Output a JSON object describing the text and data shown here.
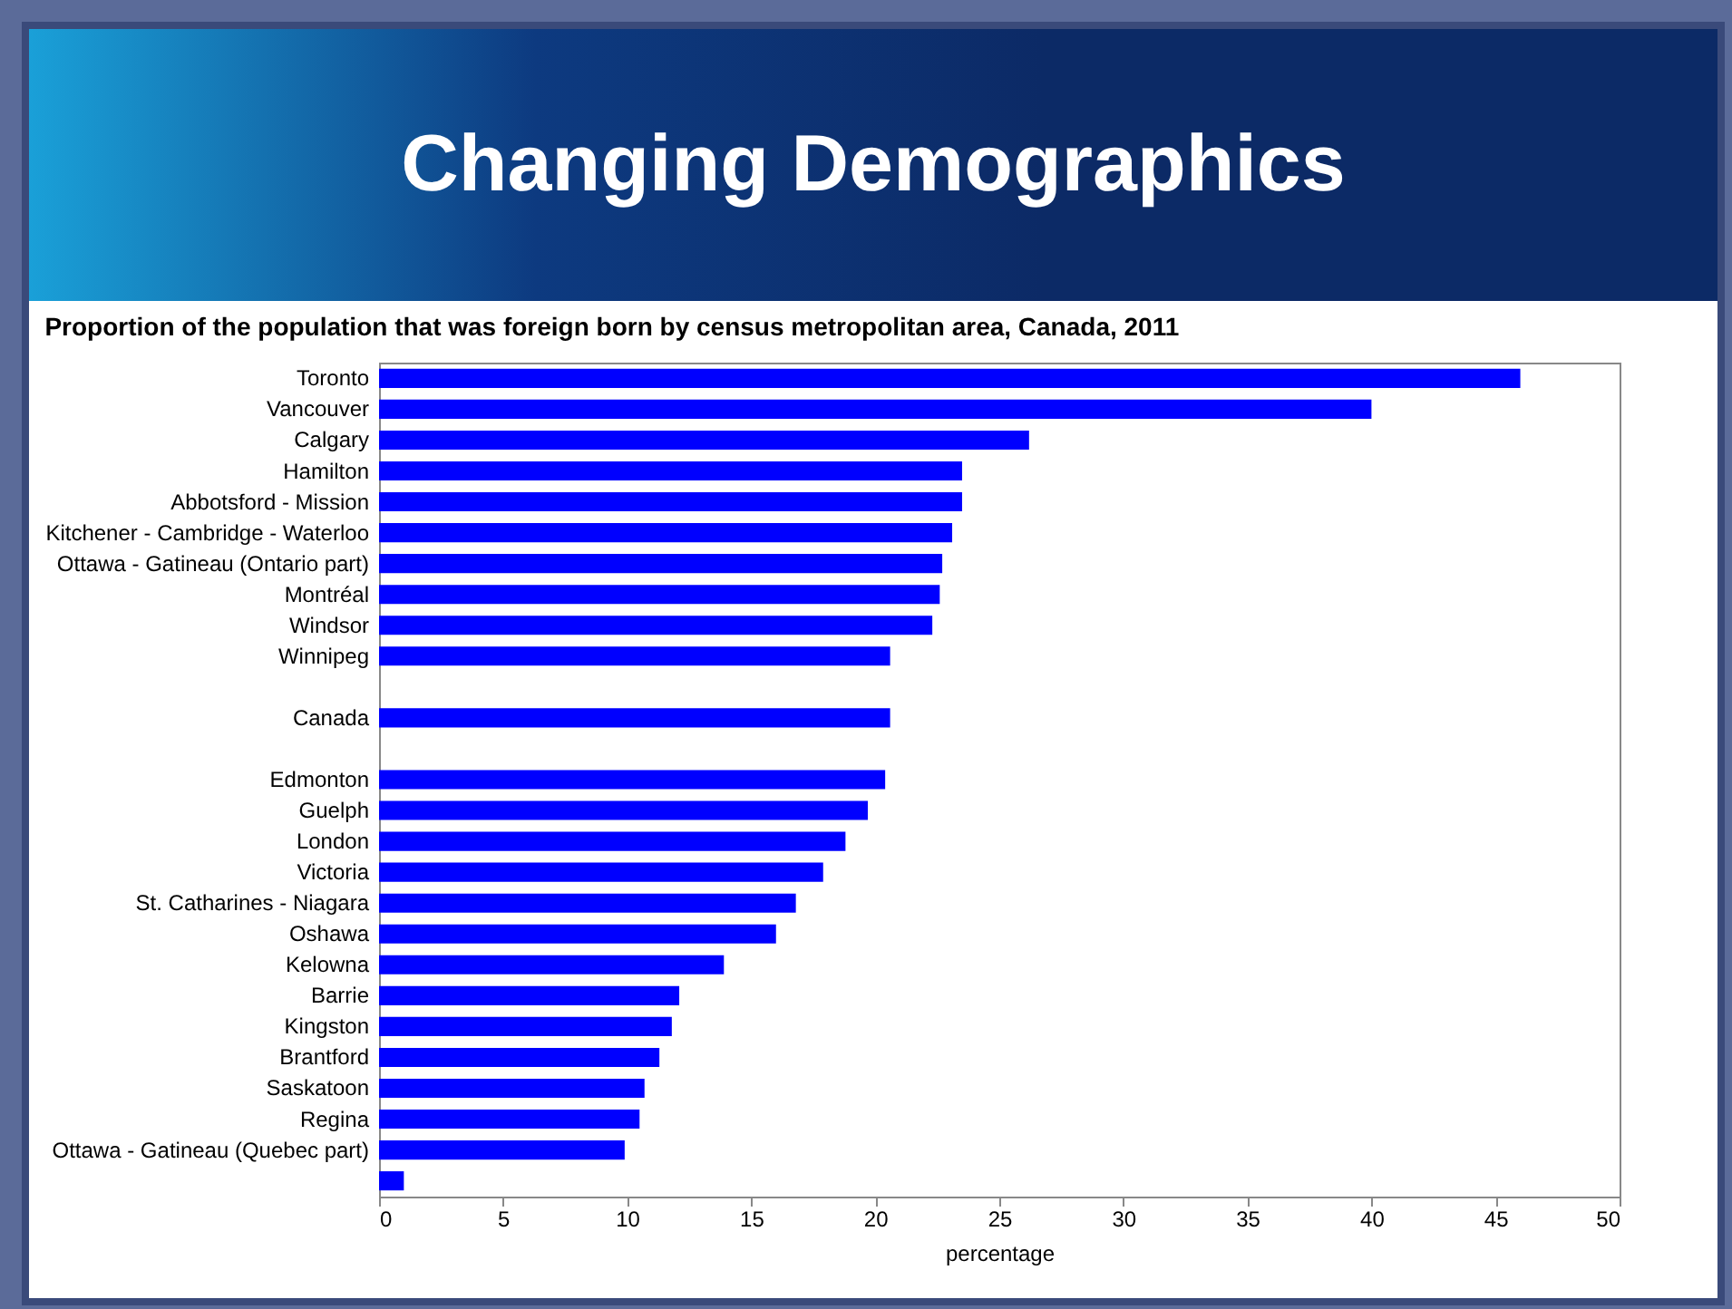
{
  "chart_data": {
    "type": "bar",
    "orientation": "horizontal",
    "title": "Changing Demographics",
    "subtitle": "Proportion of the population that was foreign born by census metropolitan area, Canada, 2011",
    "xlabel": "percentage",
    "categories": [
      "Toronto",
      "Vancouver",
      "Calgary",
      "Hamilton",
      "Abbotsford - Mission",
      "Kitchener - Cambridge - Waterloo",
      "Ottawa - Gatineau (Ontario part)",
      "Montréal",
      "Windsor",
      "Winnipeg",
      null,
      "Canada",
      null,
      "Edmonton",
      "Guelph",
      "London",
      "Victoria",
      "St. Catharines - Niagara",
      "Oshawa",
      "Kelowna",
      "Barrie",
      "Kingston",
      "Brantford",
      "Saskatoon",
      "Regina",
      "Ottawa - Gatineau (Quebec part)",
      null
    ],
    "values": [
      46.0,
      40.0,
      26.2,
      23.5,
      23.5,
      23.1,
      22.7,
      22.6,
      22.3,
      20.6,
      null,
      20.6,
      null,
      20.4,
      19.7,
      18.8,
      17.9,
      16.8,
      16.0,
      13.9,
      12.1,
      11.8,
      11.3,
      10.7,
      10.5,
      9.9,
      1.0
    ],
    "color": "#0000ff",
    "xlim": [
      0,
      50
    ],
    "xticks": [
      0,
      5,
      10,
      15,
      20,
      25,
      30,
      35,
      40,
      45,
      50
    ],
    "grid": false
  }
}
